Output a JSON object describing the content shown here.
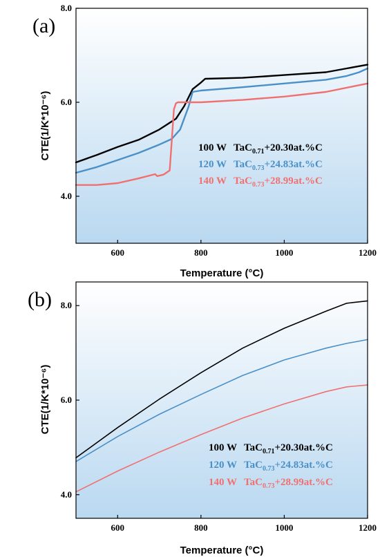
{
  "chart_data": [
    {
      "type": "line",
      "panel_label": "(a)",
      "xlabel": "Temperature (°C)",
      "ylabel": "CTE(1/K*10⁻⁶)",
      "xlim": [
        500,
        1200
      ],
      "ylim": [
        3.0,
        8.0
      ],
      "xticks": [
        600,
        800,
        1000,
        1200
      ],
      "yticks": [
        4.0,
        6.0,
        8.0
      ],
      "grid": false,
      "legend_position": "center-right",
      "series": [
        {
          "name": "100 W  TaC0.71+20.30at.%C",
          "legend": {
            "power": "100 W",
            "base": "TaC",
            "sub": "0.71",
            "rest": "+20.30at.%C"
          },
          "color": "#000000",
          "x": [
            500,
            550,
            600,
            650,
            700,
            740,
            760,
            780,
            800,
            810,
            900,
            1000,
            1100,
            1150,
            1200
          ],
          "y": [
            4.72,
            4.88,
            5.05,
            5.2,
            5.42,
            5.65,
            5.92,
            6.28,
            6.42,
            6.5,
            6.52,
            6.58,
            6.64,
            6.72,
            6.8
          ]
        },
        {
          "name": "120 W  TaC0.73+24.83at.%C",
          "legend": {
            "power": "120 W",
            "base": "TaC",
            "sub": "0.73",
            "rest": "+24.83at.%C"
          },
          "color": "#4a90c8",
          "x": [
            500,
            550,
            600,
            650,
            700,
            730,
            750,
            770,
            780,
            800,
            900,
            1000,
            1100,
            1150,
            1180,
            1200
          ],
          "y": [
            4.5,
            4.62,
            4.77,
            4.92,
            5.1,
            5.22,
            5.42,
            5.9,
            6.22,
            6.25,
            6.32,
            6.4,
            6.48,
            6.56,
            6.64,
            6.72
          ]
        },
        {
          "name": "140 W  TaC0.73+28.99at.%C",
          "legend": {
            "power": "140 W",
            "base": "TaC",
            "sub": "0.73",
            "rest": "+28.99at.%C"
          },
          "color": "#f07070",
          "x": [
            500,
            550,
            600,
            650,
            690,
            695,
            710,
            725,
            730,
            735,
            740,
            745,
            800,
            900,
            1000,
            1100,
            1200
          ],
          "y": [
            4.24,
            4.24,
            4.28,
            4.38,
            4.47,
            4.43,
            4.46,
            4.55,
            5.2,
            5.85,
            5.98,
            6.0,
            6.0,
            6.05,
            6.12,
            6.22,
            6.4
          ]
        }
      ]
    },
    {
      "type": "line",
      "panel_label": "(b)",
      "xlabel": "Temperature (°C)",
      "ylabel": "CTE(1/K*10⁻⁶)",
      "xlim": [
        500,
        1200
      ],
      "ylim": [
        3.5,
        8.5
      ],
      "xticks": [
        600,
        800,
        1000,
        1200
      ],
      "yticks": [
        4.0,
        6.0,
        8.0
      ],
      "grid": false,
      "legend_position": "bottom-right",
      "series": [
        {
          "name": "100 W  TaC0.71+20.30at.%C",
          "legend": {
            "power": "100 W",
            "base": "TaC",
            "sub": "0.71",
            "rest": "+20.30at.%C"
          },
          "color": "#000000",
          "x": [
            500,
            600,
            700,
            800,
            900,
            1000,
            1100,
            1150,
            1200
          ],
          "y": [
            4.78,
            5.42,
            6.02,
            6.58,
            7.1,
            7.52,
            7.88,
            8.05,
            8.1
          ]
        },
        {
          "name": "120 W  TaC0.73+24.83at.%C",
          "legend": {
            "power": "120 W",
            "base": "TaC",
            "sub": "0.73",
            "rest": "+24.83at.%C"
          },
          "color": "#4a90c8",
          "x": [
            500,
            600,
            700,
            800,
            900,
            1000,
            1100,
            1150,
            1200
          ],
          "y": [
            4.7,
            5.23,
            5.7,
            6.12,
            6.52,
            6.85,
            7.1,
            7.2,
            7.28
          ]
        },
        {
          "name": "140 W  TaC0.73+28.99at.%C",
          "legend": {
            "power": "140 W",
            "base": "TaC",
            "sub": "0.73",
            "rest": "+28.99at.%C"
          },
          "color": "#f07070",
          "x": [
            500,
            600,
            700,
            800,
            900,
            1000,
            1100,
            1150,
            1200
          ],
          "y": [
            4.06,
            4.5,
            4.9,
            5.27,
            5.62,
            5.92,
            6.18,
            6.28,
            6.32
          ]
        }
      ]
    }
  ]
}
